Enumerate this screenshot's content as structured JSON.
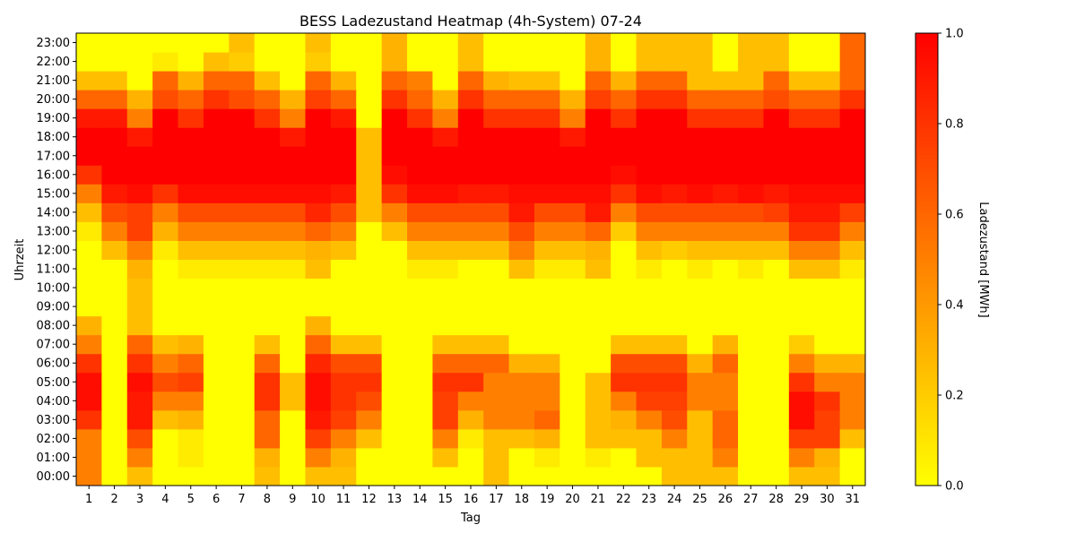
{
  "chart_data": {
    "type": "heatmap",
    "title": "BESS Ladezustand Heatmap (4h-System) 07-24",
    "xlabel": "Tag",
    "ylabel": "Uhrzeit",
    "colorbar_label": "Ladezustand [MWh]",
    "colorbar_ticks": [
      "0.0",
      "0.2",
      "0.4",
      "0.6",
      "0.8",
      "1.0"
    ],
    "vmin": 0,
    "vmax": 1,
    "colormap": [
      "#ffff00",
      "#ffcc00",
      "#ff9900",
      "#ff6600",
      "#ff3300",
      "#ff0000"
    ],
    "x_categories": [
      "1",
      "2",
      "3",
      "4",
      "5",
      "6",
      "7",
      "8",
      "9",
      "10",
      "11",
      "12",
      "13",
      "14",
      "15",
      "16",
      "17",
      "18",
      "19",
      "20",
      "21",
      "22",
      "23",
      "24",
      "25",
      "26",
      "27",
      "28",
      "29",
      "30",
      "31"
    ],
    "y_categories": [
      "00:00",
      "01:00",
      "02:00",
      "03:00",
      "04:00",
      "05:00",
      "06:00",
      "07:00",
      "08:00",
      "09:00",
      "10:00",
      "11:00",
      "12:00",
      "13:00",
      "14:00",
      "15:00",
      "16:00",
      "17:00",
      "18:00",
      "19:00",
      "20:00",
      "21:00",
      "22:00",
      "23:00"
    ],
    "values": [
      [
        0.5,
        0.0,
        0.25,
        0.0,
        0.0,
        0.0,
        0.0,
        0.25,
        0.0,
        0.25,
        0.25,
        0.0,
        0.0,
        0.0,
        0.0,
        0.0,
        0.25,
        0.0,
        0.0,
        0.0,
        0.0,
        0.0,
        0.0,
        0.25,
        0.25,
        0.25,
        0.0,
        0.0,
        0.25,
        0.25,
        0.0
      ],
      [
        0.5,
        0.0,
        0.5,
        0.0,
        0.08,
        0.0,
        0.0,
        0.3,
        0.0,
        0.5,
        0.3,
        0.0,
        0.0,
        0.0,
        0.25,
        0.0,
        0.25,
        0.0,
        0.08,
        0.0,
        0.08,
        0.0,
        0.25,
        0.25,
        0.25,
        0.5,
        0.0,
        0.0,
        0.5,
        0.3,
        0.0
      ],
      [
        0.5,
        0.0,
        0.7,
        0.0,
        0.08,
        0.0,
        0.0,
        0.6,
        0.0,
        0.75,
        0.5,
        0.25,
        0.0,
        0.0,
        0.5,
        0.08,
        0.25,
        0.25,
        0.3,
        0.0,
        0.25,
        0.25,
        0.25,
        0.5,
        0.25,
        0.6,
        0.0,
        0.0,
        0.75,
        0.75,
        0.25
      ],
      [
        0.8,
        0.0,
        0.9,
        0.25,
        0.3,
        0.0,
        0.0,
        0.6,
        0.0,
        0.9,
        0.75,
        0.5,
        0.0,
        0.0,
        0.75,
        0.3,
        0.5,
        0.5,
        0.6,
        0.0,
        0.25,
        0.3,
        0.5,
        0.7,
        0.25,
        0.6,
        0.0,
        0.0,
        0.95,
        0.75,
        0.5
      ],
      [
        0.95,
        0.0,
        0.9,
        0.5,
        0.5,
        0.0,
        0.0,
        0.8,
        0.25,
        0.95,
        0.8,
        0.7,
        0.0,
        0.0,
        0.75,
        0.5,
        0.5,
        0.5,
        0.5,
        0.0,
        0.25,
        0.5,
        0.75,
        0.75,
        0.5,
        0.5,
        0.0,
        0.0,
        0.95,
        0.8,
        0.5
      ],
      [
        0.95,
        0.0,
        0.95,
        0.7,
        0.75,
        0.0,
        0.0,
        0.8,
        0.25,
        0.95,
        0.8,
        0.8,
        0.0,
        0.0,
        0.8,
        0.8,
        0.5,
        0.5,
        0.5,
        0.0,
        0.25,
        0.8,
        0.8,
        0.8,
        0.5,
        0.5,
        0.0,
        0.0,
        0.8,
        0.5,
        0.5
      ],
      [
        0.8,
        0.0,
        0.8,
        0.5,
        0.6,
        0.0,
        0.0,
        0.6,
        0.0,
        0.85,
        0.7,
        0.7,
        0.0,
        0.0,
        0.6,
        0.6,
        0.6,
        0.3,
        0.3,
        0.0,
        0.0,
        0.7,
        0.7,
        0.7,
        0.3,
        0.6,
        0.0,
        0.0,
        0.5,
        0.3,
        0.3
      ],
      [
        0.5,
        0.0,
        0.6,
        0.25,
        0.3,
        0.0,
        0.0,
        0.25,
        0.0,
        0.6,
        0.25,
        0.25,
        0.0,
        0.0,
        0.25,
        0.25,
        0.25,
        0.0,
        0.0,
        0.0,
        0.0,
        0.25,
        0.25,
        0.25,
        0.0,
        0.3,
        0.0,
        0.0,
        0.2,
        0.0,
        0.0
      ],
      [
        0.3,
        0.0,
        0.25,
        0.0,
        0.0,
        0.0,
        0.0,
        0.0,
        0.0,
        0.3,
        0.0,
        0.0,
        0.0,
        0.0,
        0.0,
        0.0,
        0.0,
        0.0,
        0.0,
        0.0,
        0.0,
        0.0,
        0.0,
        0.0,
        0.0,
        0.0,
        0.0,
        0.0,
        0.0,
        0.0,
        0.0
      ],
      [
        0.0,
        0.0,
        0.25,
        0.0,
        0.0,
        0.0,
        0.0,
        0.0,
        0.0,
        0.0,
        0.0,
        0.0,
        0.0,
        0.0,
        0.0,
        0.0,
        0.0,
        0.0,
        0.0,
        0.0,
        0.0,
        0.0,
        0.0,
        0.0,
        0.0,
        0.0,
        0.0,
        0.0,
        0.0,
        0.0,
        0.0
      ],
      [
        0.0,
        0.0,
        0.25,
        0.0,
        0.0,
        0.0,
        0.0,
        0.0,
        0.0,
        0.0,
        0.0,
        0.0,
        0.0,
        0.0,
        0.0,
        0.0,
        0.0,
        0.0,
        0.0,
        0.0,
        0.0,
        0.0,
        0.0,
        0.0,
        0.0,
        0.0,
        0.0,
        0.0,
        0.0,
        0.0,
        0.0
      ],
      [
        0.0,
        0.0,
        0.3,
        0.0,
        0.08,
        0.08,
        0.08,
        0.08,
        0.08,
        0.25,
        0.0,
        0.0,
        0.0,
        0.08,
        0.08,
        0.0,
        0.0,
        0.25,
        0.08,
        0.08,
        0.25,
        0.0,
        0.08,
        0.0,
        0.08,
        0.0,
        0.08,
        0.0,
        0.25,
        0.25,
        0.08
      ],
      [
        0.0,
        0.25,
        0.5,
        0.08,
        0.25,
        0.25,
        0.25,
        0.25,
        0.25,
        0.3,
        0.25,
        0.0,
        0.0,
        0.25,
        0.25,
        0.25,
        0.25,
        0.5,
        0.25,
        0.25,
        0.3,
        0.0,
        0.25,
        0.2,
        0.25,
        0.25,
        0.25,
        0.25,
        0.5,
        0.5,
        0.25
      ],
      [
        0.08,
        0.5,
        0.75,
        0.3,
        0.5,
        0.5,
        0.5,
        0.5,
        0.5,
        0.6,
        0.5,
        0.0,
        0.25,
        0.5,
        0.5,
        0.5,
        0.5,
        0.7,
        0.5,
        0.5,
        0.6,
        0.2,
        0.5,
        0.5,
        0.5,
        0.5,
        0.5,
        0.5,
        0.8,
        0.8,
        0.5
      ],
      [
        0.25,
        0.7,
        0.75,
        0.5,
        0.7,
        0.7,
        0.7,
        0.7,
        0.7,
        0.85,
        0.7,
        0.25,
        0.5,
        0.7,
        0.7,
        0.7,
        0.7,
        0.9,
        0.7,
        0.7,
        0.9,
        0.5,
        0.7,
        0.7,
        0.7,
        0.7,
        0.7,
        0.75,
        0.9,
        0.9,
        0.75
      ],
      [
        0.5,
        0.9,
        0.95,
        0.8,
        0.95,
        0.95,
        0.95,
        0.95,
        0.95,
        0.95,
        0.9,
        0.25,
        0.8,
        0.95,
        0.95,
        0.9,
        0.9,
        0.95,
        0.95,
        0.95,
        0.95,
        0.8,
        0.95,
        0.9,
        0.95,
        0.9,
        0.95,
        0.9,
        0.95,
        0.95,
        0.95
      ],
      [
        0.8,
        1.0,
        1.0,
        1.0,
        1.0,
        1.0,
        1.0,
        1.0,
        1.0,
        1.0,
        1.0,
        0.25,
        0.95,
        1.0,
        1.0,
        1.0,
        1.0,
        1.0,
        1.0,
        1.0,
        1.0,
        0.95,
        1.0,
        1.0,
        1.0,
        1.0,
        1.0,
        1.0,
        1.0,
        1.0,
        1.0
      ],
      [
        1.0,
        1.0,
        1.0,
        1.0,
        1.0,
        1.0,
        1.0,
        1.0,
        1.0,
        1.0,
        1.0,
        0.25,
        1.0,
        1.0,
        1.0,
        1.0,
        1.0,
        1.0,
        1.0,
        1.0,
        1.0,
        1.0,
        1.0,
        1.0,
        1.0,
        1.0,
        1.0,
        1.0,
        1.0,
        1.0,
        1.0
      ],
      [
        1.0,
        1.0,
        0.9,
        1.0,
        1.0,
        1.0,
        1.0,
        1.0,
        0.9,
        1.0,
        1.0,
        0.25,
        1.0,
        1.0,
        0.9,
        1.0,
        1.0,
        1.0,
        1.0,
        0.9,
        1.0,
        1.0,
        1.0,
        1.0,
        1.0,
        1.0,
        1.0,
        1.0,
        1.0,
        1.0,
        1.0
      ],
      [
        0.9,
        0.9,
        0.5,
        1.0,
        0.8,
        1.0,
        1.0,
        0.8,
        0.5,
        1.0,
        0.9,
        0.0,
        1.0,
        0.8,
        0.5,
        1.0,
        0.8,
        0.8,
        0.8,
        0.5,
        1.0,
        0.8,
        1.0,
        1.0,
        0.8,
        0.8,
        0.8,
        1.0,
        0.8,
        0.8,
        1.0
      ],
      [
        0.6,
        0.6,
        0.3,
        0.7,
        0.6,
        0.8,
        0.7,
        0.6,
        0.3,
        0.75,
        0.6,
        0.0,
        0.8,
        0.6,
        0.3,
        0.8,
        0.6,
        0.6,
        0.6,
        0.3,
        0.75,
        0.6,
        0.8,
        0.8,
        0.6,
        0.6,
        0.6,
        0.7,
        0.6,
        0.6,
        0.8
      ],
      [
        0.25,
        0.25,
        0.0,
        0.6,
        0.3,
        0.6,
        0.6,
        0.25,
        0.0,
        0.6,
        0.3,
        0.0,
        0.6,
        0.5,
        0.0,
        0.6,
        0.3,
        0.25,
        0.25,
        0.0,
        0.6,
        0.3,
        0.6,
        0.6,
        0.25,
        0.25,
        0.25,
        0.6,
        0.25,
        0.25,
        0.6
      ],
      [
        0.0,
        0.0,
        0.0,
        0.08,
        0.0,
        0.25,
        0.2,
        0.0,
        0.0,
        0.2,
        0.0,
        0.0,
        0.3,
        0.0,
        0.0,
        0.25,
        0.0,
        0.0,
        0.0,
        0.0,
        0.3,
        0.0,
        0.25,
        0.25,
        0.25,
        0.0,
        0.25,
        0.25,
        0.0,
        0.0,
        0.6
      ],
      [
        0.0,
        0.0,
        0.0,
        0.0,
        0.0,
        0.0,
        0.25,
        0.0,
        0.0,
        0.25,
        0.0,
        0.0,
        0.3,
        0.0,
        0.0,
        0.25,
        0.0,
        0.0,
        0.0,
        0.0,
        0.3,
        0.0,
        0.25,
        0.25,
        0.25,
        0.0,
        0.25,
        0.25,
        0.0,
        0.0,
        0.6
      ]
    ]
  }
}
